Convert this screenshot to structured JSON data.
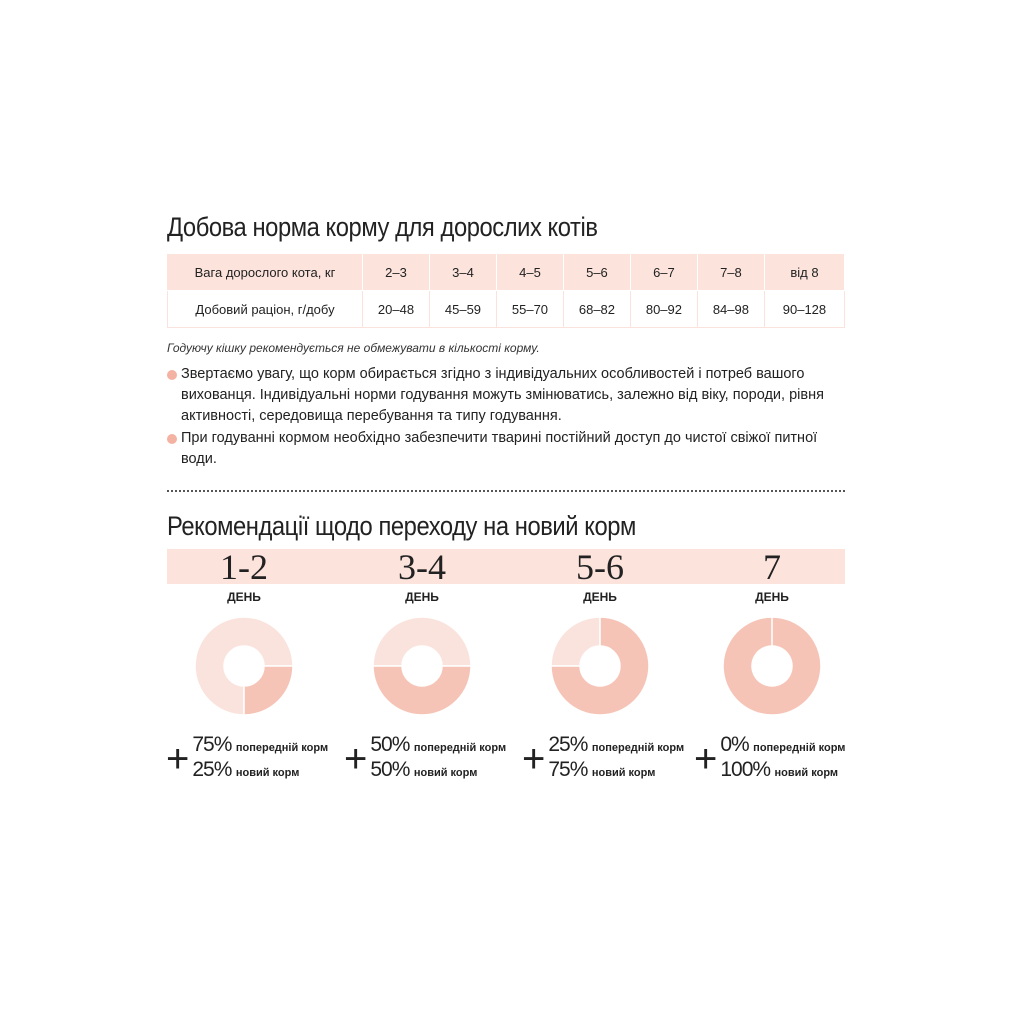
{
  "section1": {
    "title": "Добова норма корму для дорослих котів",
    "table": {
      "header": [
        "Вага дорослого кота, кг",
        "2–3",
        "3–4",
        "4–5",
        "5–6",
        "6–7",
        "7–8",
        "від 8"
      ],
      "row": [
        "Добовий раціон, г/добу",
        "20–48",
        "45–59",
        "55–70",
        "68–82",
        "80–92",
        "84–98",
        "90–128"
      ]
    },
    "note": "Годуючу кішку рекомендується не обмежувати в кількості корму.",
    "bullets": [
      "Звертаємо увагу, що корм обирається згідно з індивідуальних особливостей і потреб вашого вихованця. Індивідуальні норми годування можуть змінюватись, залежно від віку, породи, рівня активності, середовища перебування та типу годування.",
      "При годуванні кормом необхідно забезпечити тварині постійний доступ до чистої свіжої питної води."
    ]
  },
  "section2": {
    "title": "Рекомендації щодо переходу на новий корм",
    "steps": [
      {
        "days": "1-2",
        "day_label": "ДЕНЬ",
        "old_pct": "75%",
        "old_label": "попередній корм",
        "new_pct": "25%",
        "new_label": "новий корм",
        "new_share": 25
      },
      {
        "days": "3-4",
        "day_label": "ДЕНЬ",
        "old_pct": "50%",
        "old_label": "попередній корм",
        "new_pct": "50%",
        "new_label": "новий корм",
        "new_share": 50
      },
      {
        "days": "5-6",
        "day_label": "ДЕНЬ",
        "old_pct": "25%",
        "old_label": "попередній корм",
        "new_pct": "75%",
        "new_label": "новий корм",
        "new_share": 75
      },
      {
        "days": "7",
        "day_label": "ДЕНЬ",
        "old_pct": "0%",
        "old_label": "попередній корм",
        "new_pct": "100%",
        "new_label": "новий корм",
        "new_share": 100
      }
    ]
  },
  "colors": {
    "old_food": "#fbe3dd",
    "new_food": "#f6c4b6",
    "band": "#fce3dc",
    "bullet": "#f4b2a2"
  }
}
